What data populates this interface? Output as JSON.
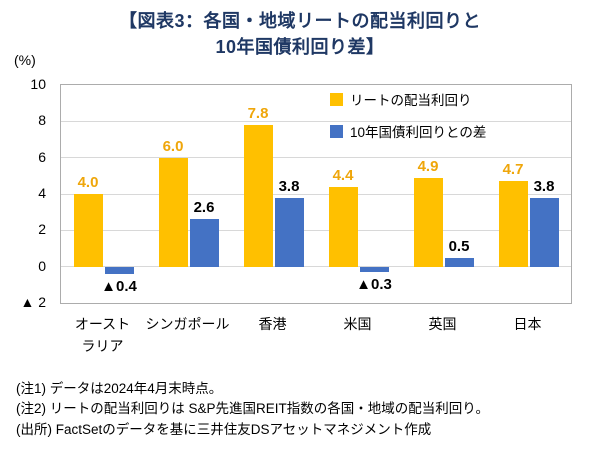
{
  "title_line1": "【図表3：各国・地域リートの配当利回りと",
  "title_line2": "10年国債利回り差】",
  "y_axis_unit": "(%)",
  "legend": [
    {
      "label": "リートの配当利回り",
      "color": "#FFC000"
    },
    {
      "label": "10年国債利回りとの差",
      "color": "#4472C4"
    }
  ],
  "chart_data": {
    "type": "bar",
    "title": "図表3：各国・地域リートの配当利回りと10年国債利回り差",
    "ylabel": "(%)",
    "categories": [
      "オーストラリア",
      "シンガポール",
      "香港",
      "米国",
      "英国",
      "日本"
    ],
    "category_display": [
      [
        "オースト",
        "ラリア"
      ],
      [
        "シンガポール"
      ],
      [
        "香港"
      ],
      [
        "米国"
      ],
      [
        "英国"
      ],
      [
        "日本"
      ]
    ],
    "series": [
      {
        "name": "リートの配当利回り",
        "color": "#FFC000",
        "values": [
          4.0,
          6.0,
          7.8,
          4.4,
          4.9,
          4.7
        ],
        "labels": [
          "4.0",
          "6.0",
          "7.8",
          "4.4",
          "4.9",
          "4.7"
        ]
      },
      {
        "name": "10年国債利回りとの差",
        "color": "#4472C4",
        "values": [
          -0.4,
          2.6,
          3.8,
          -0.3,
          0.5,
          3.8
        ],
        "labels": [
          "▲0.4",
          "2.6",
          "3.8",
          "▲0.3",
          "0.5",
          "3.8"
        ]
      }
    ],
    "ylim": [
      -2,
      10
    ],
    "ytick_step": 2,
    "ytick_labels": [
      "10",
      "8",
      "6",
      "4",
      "2",
      "0",
      "▲ 2"
    ],
    "grid": true,
    "legend_position": "top-right"
  },
  "notes": [
    "(注1) データは2024年4月末時点。",
    "(注2) リートの配当利回りは S&P先進国REIT指数の各国・地域の配当利回り。",
    "(出所) FactSetのデータを基に三井住友DSアセットマネジメント作成"
  ],
  "colors": {
    "title": "#1F3864",
    "series1": "#FFC000",
    "series2": "#4472C4",
    "label_series1": "#EFA60A",
    "label_series2": "#000000",
    "grid": "#D8D8D8",
    "axis_text": "#000000"
  }
}
